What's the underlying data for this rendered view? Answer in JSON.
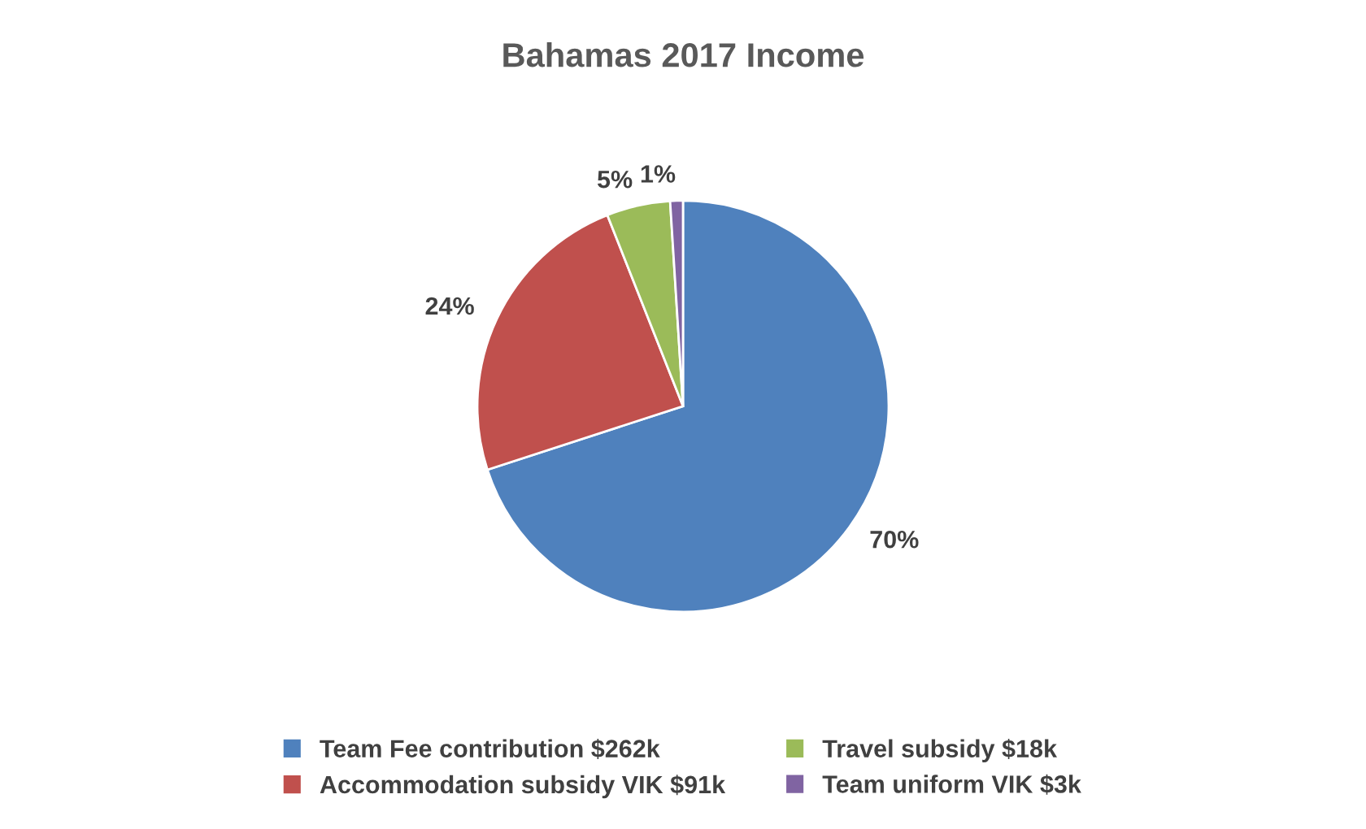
{
  "chart_data": {
    "type": "pie",
    "title": "Bahamas 2017 Income",
    "categories": [
      "Team Fee contribution $262k",
      "Accommodation subsidy VIK $91k",
      "Travel subsidy $18k",
      "Team uniform VIK $3k"
    ],
    "values": [
      70,
      24,
      5,
      1
    ],
    "colors": [
      "#4f81bd",
      "#c0504d",
      "#9bbb59",
      "#8064a2"
    ],
    "value_labels": [
      "70%",
      "24%",
      "5%",
      "1%"
    ],
    "legend": "bottom"
  }
}
